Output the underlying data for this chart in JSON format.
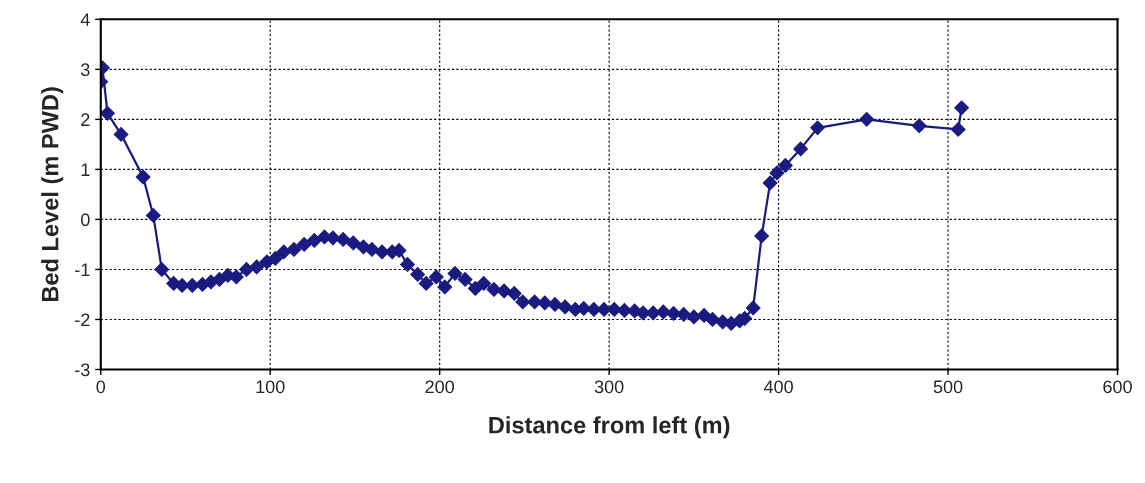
{
  "chart_data": {
    "type": "line",
    "xlabel": "Distance from left (m)",
    "ylabel": "Bed Level (m PWD)",
    "xlim": [
      0,
      600
    ],
    "xticks": [
      0,
      100,
      200,
      300,
      400,
      500,
      600
    ],
    "ylim": [
      -3,
      4
    ],
    "yticks": [
      -3,
      -2,
      -1,
      0,
      1,
      2,
      3,
      4
    ],
    "grid": true,
    "marker": "diamond",
    "line_style": "solid",
    "series": [
      {
        "color": "#1a1a80",
        "x": [
          0,
          1,
          4,
          12,
          25,
          31,
          36,
          43,
          48,
          54,
          60,
          65,
          70,
          75,
          80,
          86,
          92,
          98,
          103,
          108,
          114,
          120,
          126,
          132,
          137,
          143,
          149,
          155,
          160,
          166,
          172,
          176,
          181,
          187,
          192,
          198,
          203,
          209,
          215,
          221,
          226,
          232,
          238,
          244,
          249,
          256,
          262,
          268,
          274,
          280,
          285,
          291,
          297,
          303,
          309,
          315,
          320,
          326,
          332,
          338,
          344,
          350,
          356,
          361,
          367,
          372,
          377,
          380,
          385,
          390,
          395,
          399,
          404,
          413,
          423,
          452,
          483,
          506,
          508
        ],
        "values": [
          2.75,
          3.03,
          2.12,
          1.7,
          0.85,
          0.08,
          -1.0,
          -1.28,
          -1.32,
          -1.32,
          -1.3,
          -1.25,
          -1.2,
          -1.12,
          -1.15,
          -1.0,
          -0.95,
          -0.85,
          -0.78,
          -0.65,
          -0.6,
          -0.5,
          -0.42,
          -0.35,
          -0.37,
          -0.4,
          -0.47,
          -0.55,
          -0.6,
          -0.65,
          -0.65,
          -0.62,
          -0.9,
          -1.1,
          -1.28,
          -1.15,
          -1.35,
          -1.08,
          -1.2,
          -1.38,
          -1.28,
          -1.4,
          -1.43,
          -1.48,
          -1.65,
          -1.65,
          -1.67,
          -1.7,
          -1.75,
          -1.8,
          -1.78,
          -1.8,
          -1.8,
          -1.8,
          -1.82,
          -1.83,
          -1.87,
          -1.87,
          -1.85,
          -1.88,
          -1.9,
          -1.95,
          -1.92,
          -2.0,
          -2.05,
          -2.08,
          -2.03,
          -1.98,
          -1.77,
          -0.33,
          0.73,
          0.93,
          1.08,
          1.41,
          1.83,
          2.0,
          1.87,
          1.8,
          2.23
        ]
      }
    ]
  }
}
